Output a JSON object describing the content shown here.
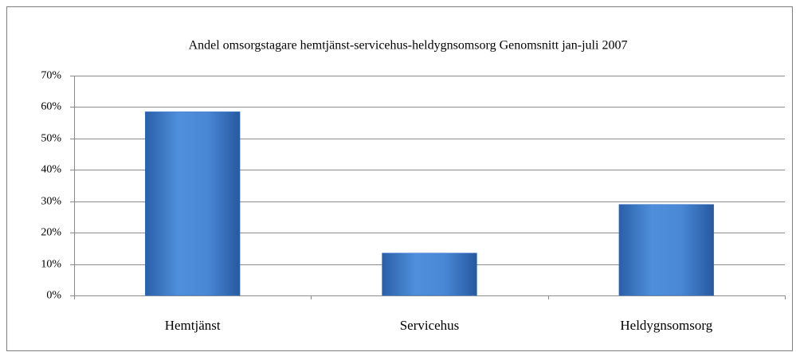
{
  "chart_data": {
    "type": "bar",
    "title": "Andel omsorgstagare hemtjänst-servicehus-heldygnsomsorg Genomsnitt jan-juli 2007",
    "categories": [
      "Hemtjänst",
      "Servicehus",
      "Heldygnsomsorg"
    ],
    "values": [
      58.5,
      13.5,
      29
    ],
    "color": "#3a78c8",
    "ylim": [
      0,
      70
    ],
    "yticks": [
      {
        "value": 0,
        "label": "0%"
      },
      {
        "value": 10,
        "label": "10%"
      },
      {
        "value": 20,
        "label": "20%"
      },
      {
        "value": 30,
        "label": "30%"
      },
      {
        "value": 40,
        "label": "40%"
      },
      {
        "value": 50,
        "label": "50%"
      },
      {
        "value": 60,
        "label": "60%"
      },
      {
        "value": 70,
        "label": "70%"
      }
    ],
    "grid": true
  }
}
